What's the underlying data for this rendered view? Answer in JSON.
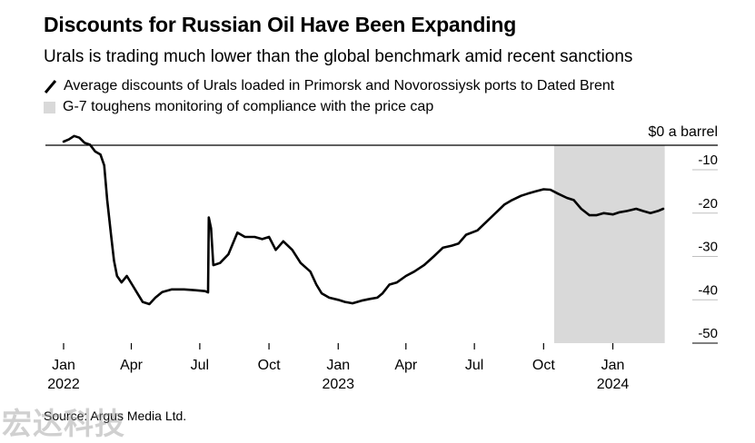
{
  "title": "Discounts for Russian Oil Have Been Expanding",
  "subtitle": "Urals is trading much lower than the global benchmark amid recent sanctions",
  "legend": {
    "line_label": "Average discounts of Urals loaded in Primorsk and Novorossiysk ports to Dated Brent",
    "shade_label": "G-7 toughens monitoring of compliance with the price cap"
  },
  "source": "Source: Argus Media Ltd.",
  "watermark": "宏达科技",
  "colors": {
    "line": "#000000",
    "shade": "#d9d9d9",
    "grid": "#bfbfbf",
    "axis": "#000000"
  },
  "chart_data": {
    "type": "line",
    "ylabel": "$0 a barrel",
    "ylim": [
      -52,
      2
    ],
    "yticks": [
      -10,
      -20,
      -30,
      -40,
      -50
    ],
    "ytick_labels": [
      "-10",
      "-20",
      "-30",
      "-40",
      "-50"
    ],
    "xlim": [
      "2022-01-01",
      "2024-03-15"
    ],
    "x_ticks": [
      {
        "date": "2022-01-01",
        "label": "Jan",
        "year": "2022"
      },
      {
        "date": "2022-04-01",
        "label": "Apr",
        "year": ""
      },
      {
        "date": "2022-07-01",
        "label": "Jul",
        "year": ""
      },
      {
        "date": "2022-10-01",
        "label": "Oct",
        "year": ""
      },
      {
        "date": "2023-01-01",
        "label": "Jan",
        "year": "2023"
      },
      {
        "date": "2023-04-01",
        "label": "Apr",
        "year": ""
      },
      {
        "date": "2023-07-01",
        "label": "Jul",
        "year": ""
      },
      {
        "date": "2023-10-01",
        "label": "Oct",
        "year": ""
      },
      {
        "date": "2024-01-01",
        "label": "Jan",
        "year": "2024"
      }
    ],
    "shaded_range": [
      "2023-10-15",
      "2024-03-10"
    ],
    "series": [
      {
        "points": [
          [
            "2022-01-01",
            -3.5
          ],
          [
            "2022-01-08",
            -3.0
          ],
          [
            "2022-01-15",
            -2.2
          ],
          [
            "2022-01-22",
            -2.6
          ],
          [
            "2022-01-29",
            -3.8
          ],
          [
            "2022-02-05",
            -4.2
          ],
          [
            "2022-02-12",
            -5.8
          ],
          [
            "2022-02-19",
            -6.5
          ],
          [
            "2022-02-24",
            -9
          ],
          [
            "2022-02-28",
            -17
          ],
          [
            "2022-03-05",
            -25
          ],
          [
            "2022-03-09",
            -31
          ],
          [
            "2022-03-13",
            -34.5
          ],
          [
            "2022-03-19",
            -36
          ],
          [
            "2022-03-26",
            -34.5
          ],
          [
            "2022-04-02",
            -36.5
          ],
          [
            "2022-04-09",
            -38.5
          ],
          [
            "2022-04-16",
            -40.5
          ],
          [
            "2022-04-25",
            -41
          ],
          [
            "2022-05-03",
            -39.5
          ],
          [
            "2022-05-12",
            -38.2
          ],
          [
            "2022-05-25",
            -37.6
          ],
          [
            "2022-06-10",
            -37.6
          ],
          [
            "2022-06-25",
            -37.8
          ],
          [
            "2022-07-08",
            -38.0
          ],
          [
            "2022-07-12",
            -38.3
          ],
          [
            "2022-07-13",
            -21
          ],
          [
            "2022-07-16",
            -23.5
          ],
          [
            "2022-07-19",
            -32
          ],
          [
            "2022-07-28",
            -31.5
          ],
          [
            "2022-08-08",
            -29.5
          ],
          [
            "2022-08-20",
            -24.5
          ],
          [
            "2022-08-30",
            -25.5
          ],
          [
            "2022-09-12",
            -25.5
          ],
          [
            "2022-09-22",
            -26
          ],
          [
            "2022-10-01",
            -25.5
          ],
          [
            "2022-10-10",
            -28.5
          ],
          [
            "2022-10-20",
            -26.5
          ],
          [
            "2022-11-01",
            -28.5
          ],
          [
            "2022-11-12",
            -31.5
          ],
          [
            "2022-11-25",
            -33.5
          ],
          [
            "2022-12-03",
            -36.5
          ],
          [
            "2022-12-10",
            -38.5
          ],
          [
            "2022-12-20",
            -39.5
          ],
          [
            "2023-01-01",
            -40.0
          ],
          [
            "2023-01-10",
            -40.5
          ],
          [
            "2023-01-20",
            -40.8
          ],
          [
            "2023-02-01",
            -40.2
          ],
          [
            "2023-02-12",
            -39.8
          ],
          [
            "2023-02-22",
            -39.5
          ],
          [
            "2023-03-01",
            -38.5
          ],
          [
            "2023-03-10",
            -36.5
          ],
          [
            "2023-03-20",
            -36
          ],
          [
            "2023-04-01",
            -34.5
          ],
          [
            "2023-04-12",
            -33.5
          ],
          [
            "2023-04-25",
            -32.0
          ],
          [
            "2023-05-08",
            -30.0
          ],
          [
            "2023-05-20",
            -28.0
          ],
          [
            "2023-06-01",
            -27.5
          ],
          [
            "2023-06-10",
            -27.0
          ],
          [
            "2023-06-20",
            -25.0
          ],
          [
            "2023-07-05",
            -24.0
          ],
          [
            "2023-07-20",
            -21.5
          ],
          [
            "2023-08-01",
            -19.5
          ],
          [
            "2023-08-10",
            -18.0
          ],
          [
            "2023-08-20",
            -17.0
          ],
          [
            "2023-09-01",
            -16.0
          ],
          [
            "2023-09-10",
            -15.5
          ],
          [
            "2023-09-20",
            -15.0
          ],
          [
            "2023-10-01",
            -14.5
          ],
          [
            "2023-10-10",
            -14.6
          ],
          [
            "2023-10-20",
            -15.5
          ],
          [
            "2023-11-01",
            -16.5
          ],
          [
            "2023-11-10",
            -17.0
          ],
          [
            "2023-11-20",
            -19.0
          ],
          [
            "2023-12-01",
            -20.5
          ],
          [
            "2023-12-10",
            -20.5
          ],
          [
            "2023-12-20",
            -20.0
          ],
          [
            "2024-01-01",
            -20.3
          ],
          [
            "2024-01-10",
            -19.8
          ],
          [
            "2024-01-20",
            -19.5
          ],
          [
            "2024-02-01",
            -19.0
          ],
          [
            "2024-02-10",
            -19.5
          ],
          [
            "2024-02-20",
            -20.0
          ],
          [
            "2024-03-01",
            -19.5
          ],
          [
            "2024-03-08",
            -19.0
          ]
        ]
      }
    ]
  }
}
